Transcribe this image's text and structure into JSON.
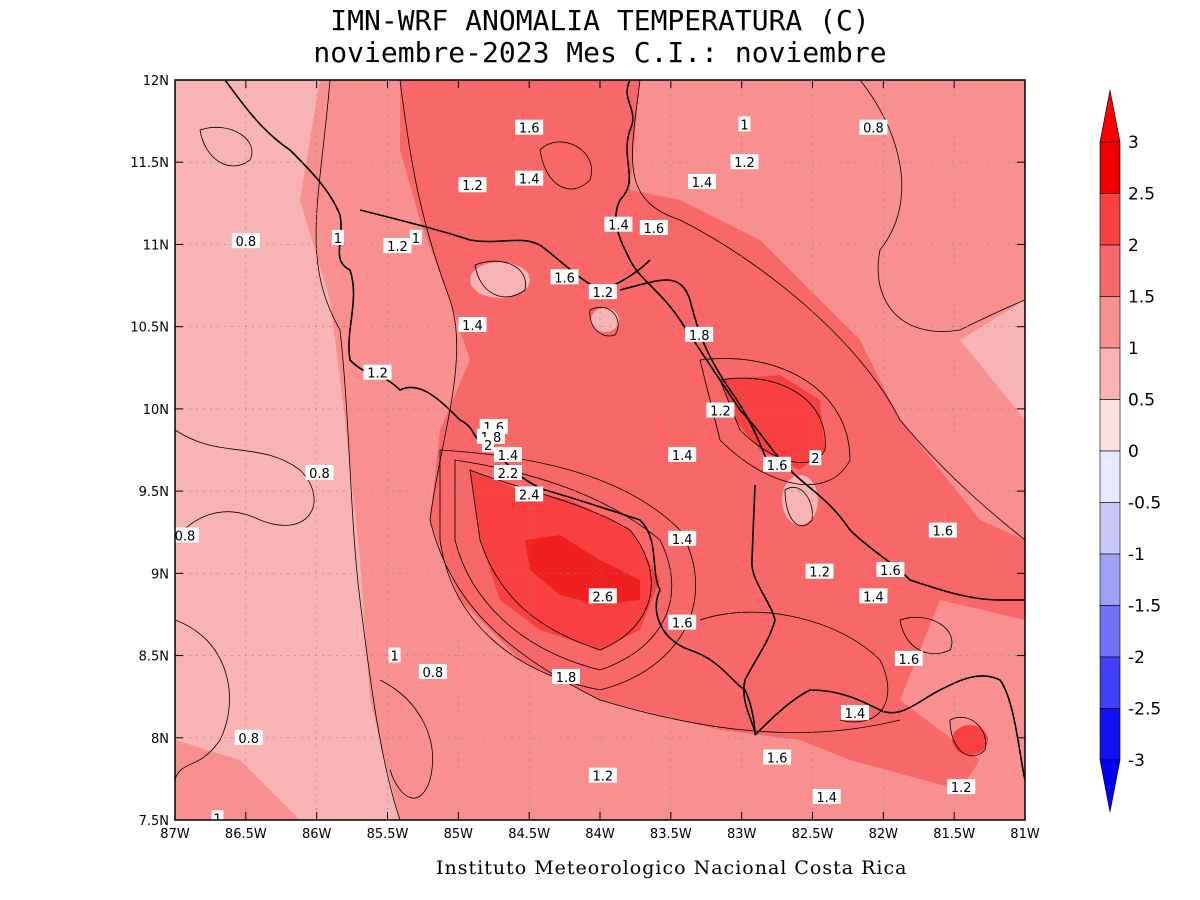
{
  "title": {
    "line1": "IMN-WRF  ANOMALIA TEMPERATURA (C)",
    "line2": "noviembre-2023 Mes C.I.: noviembre"
  },
  "footer": "Instituto Meteorologico Nacional Costa Rica",
  "axes": {
    "lon_ticks": [
      "87W",
      "86.5W",
      "86W",
      "85.5W",
      "85W",
      "84.5W",
      "84W",
      "83.5W",
      "83W",
      "82.5W",
      "82W",
      "81.5W",
      "81W"
    ],
    "lat_ticks": [
      "12N",
      "11.5N",
      "11N",
      "10.5N",
      "10N",
      "9.5N",
      "9N",
      "8.5N",
      "8N",
      "7.5N"
    ],
    "lon_range": [
      -87,
      -81
    ],
    "lat_range": [
      7.5,
      12
    ],
    "grid": true
  },
  "colorbar": {
    "labels": [
      "3",
      "2.5",
      "2",
      "1.5",
      "1",
      "0.5",
      "0",
      "-0.5",
      "-1",
      "-1.5",
      "-2",
      "-2.5",
      "-3"
    ],
    "colors": [
      "#f00000",
      "#f84040",
      "#f86868",
      "#f89090",
      "#f8b4b4",
      "#fde0e0",
      "#ffffff",
      "#e8e8ff",
      "#c8c8fb",
      "#a0a0f8",
      "#7070f8",
      "#4040f8",
      "#1010f0"
    ],
    "extend_top_color": "#ff0000",
    "extend_bottom_color": "#0000ff"
  },
  "contour_labels": [
    {
      "text": "1.6",
      "lon": -84.5,
      "lat": 11.71
    },
    {
      "text": "1.4",
      "lon": -84.5,
      "lat": 11.4
    },
    {
      "text": "1.2",
      "lon": -84.9,
      "lat": 11.36
    },
    {
      "text": "1",
      "lon": -82.98,
      "lat": 11.73
    },
    {
      "text": "0.8",
      "lon": -82.07,
      "lat": 11.71
    },
    {
      "text": "1.2",
      "lon": -82.98,
      "lat": 11.5
    },
    {
      "text": "1.4",
      "lon": -83.28,
      "lat": 11.38
    },
    {
      "text": "1.4",
      "lon": -83.87,
      "lat": 11.12
    },
    {
      "text": "1.6",
      "lon": -83.62,
      "lat": 11.1
    },
    {
      "text": "0.8",
      "lon": -86.5,
      "lat": 11.02
    },
    {
      "text": "1",
      "lon": -85.85,
      "lat": 11.04
    },
    {
      "text": "1.2",
      "lon": -85.43,
      "lat": 10.99
    },
    {
      "text": "1",
      "lon": -85.3,
      "lat": 11.04
    },
    {
      "text": "1.6",
      "lon": -84.25,
      "lat": 10.8
    },
    {
      "text": "1.2",
      "lon": -83.98,
      "lat": 10.71
    },
    {
      "text": "1.4",
      "lon": -84.9,
      "lat": 10.51
    },
    {
      "text": "1.8",
      "lon": -83.3,
      "lat": 10.45
    },
    {
      "text": "1.2",
      "lon": -85.57,
      "lat": 10.22
    },
    {
      "text": "1.2",
      "lon": -83.15,
      "lat": 9.99
    },
    {
      "text": "1.6",
      "lon": -84.75,
      "lat": 9.89
    },
    {
      "text": "1.8",
      "lon": -84.77,
      "lat": 9.83
    },
    {
      "text": "2",
      "lon": -84.79,
      "lat": 9.78
    },
    {
      "text": "1.4",
      "lon": -84.65,
      "lat": 9.72
    },
    {
      "text": "1.4",
      "lon": -83.42,
      "lat": 9.72
    },
    {
      "text": "1.6",
      "lon": -82.75,
      "lat": 9.66
    },
    {
      "text": "2",
      "lon": -82.48,
      "lat": 9.7
    },
    {
      "text": "2.2",
      "lon": -84.65,
      "lat": 9.61
    },
    {
      "text": "0.8",
      "lon": -85.98,
      "lat": 9.61
    },
    {
      "text": "2.4",
      "lon": -84.5,
      "lat": 9.48
    },
    {
      "text": "0.8",
      "lon": -86.93,
      "lat": 9.23
    },
    {
      "text": "1.4",
      "lon": -83.42,
      "lat": 9.21
    },
    {
      "text": "1.6",
      "lon": -81.58,
      "lat": 9.26
    },
    {
      "text": "1.2",
      "lon": -82.45,
      "lat": 9.01
    },
    {
      "text": "1.6",
      "lon": -81.95,
      "lat": 9.02
    },
    {
      "text": "2.6",
      "lon": -83.98,
      "lat": 8.86
    },
    {
      "text": "1.4",
      "lon": -82.07,
      "lat": 8.86
    },
    {
      "text": "1.6",
      "lon": -83.42,
      "lat": 8.7
    },
    {
      "text": "1.6",
      "lon": -81.82,
      "lat": 8.48
    },
    {
      "text": "1",
      "lon": -85.45,
      "lat": 8.5
    },
    {
      "text": "0.8",
      "lon": -85.18,
      "lat": 8.4
    },
    {
      "text": "1.8",
      "lon": -84.24,
      "lat": 8.37
    },
    {
      "text": "1.4",
      "lon": -82.2,
      "lat": 8.15
    },
    {
      "text": "0.8",
      "lon": -86.48,
      "lat": 8.0
    },
    {
      "text": "1.6",
      "lon": -82.75,
      "lat": 7.88
    },
    {
      "text": "1.2",
      "lon": -83.98,
      "lat": 7.77
    },
    {
      "text": "1.2",
      "lon": -81.45,
      "lat": 7.7
    },
    {
      "text": "1.4",
      "lon": -82.4,
      "lat": 7.64
    },
    {
      "text": "1",
      "lon": -86.7,
      "lat": 7.51
    }
  ]
}
